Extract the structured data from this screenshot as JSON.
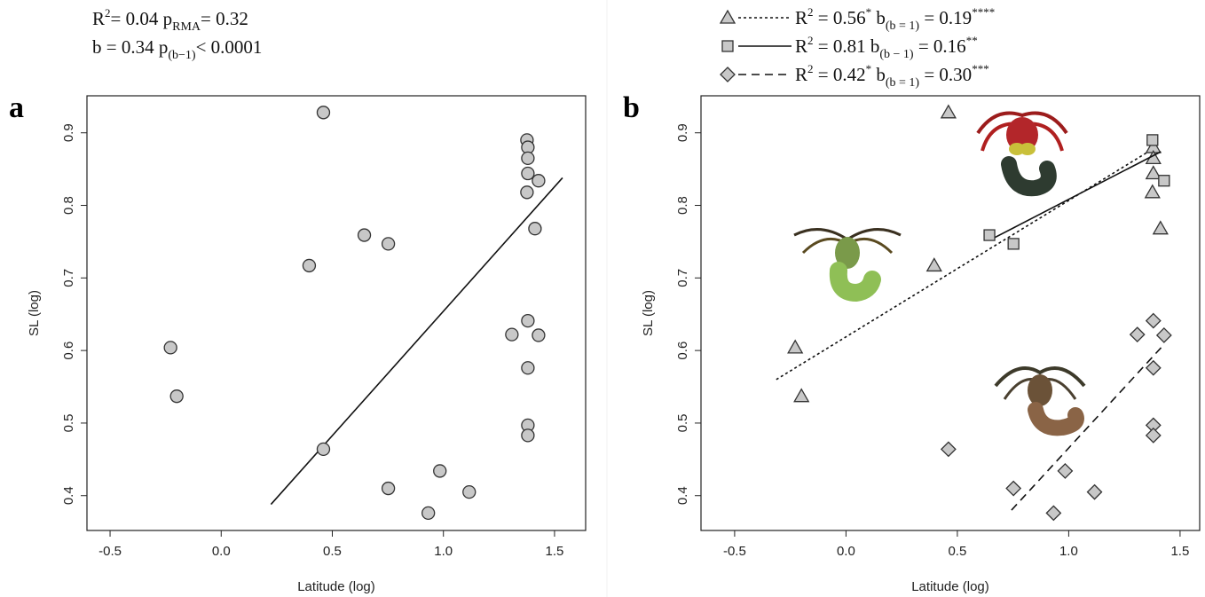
{
  "chart_data": [
    {
      "type": "scatter",
      "panel_label": "a",
      "annotations": [
        [
          "R",
          {
            "sup": "2"
          },
          "= 0.04  p",
          {
            "sub": "RMA"
          },
          "= 0.32"
        ],
        [
          " b = 0.34  p",
          {
            "sub": "(b−1)"
          },
          "< 0.0001"
        ]
      ],
      "x_label": "Latitude (log)",
      "y_label": "SL (log)",
      "xlim": [
        -0.604,
        1.64
      ],
      "ylim": [
        0.352,
        0.951
      ],
      "xticks": [
        -0.5,
        {
          "value": 0,
          "label": "0.0"
        },
        0.5,
        {
          "value": 1,
          "label": "1.0"
        },
        1.5
      ],
      "yticks": [
        0.4,
        0.5,
        0.6,
        0.7,
        0.8,
        0.9
      ],
      "series": [
        {
          "marker": "circle",
          "color": "#c8c8c8",
          "line_style": "solid",
          "x": [
            -0.228,
            -0.2,
            0.46,
            0.396,
            0.644,
            0.752,
            0.46,
            0.752,
            0.984,
            0.932,
            1.116,
            1.376,
            1.38,
            1.38,
            1.38,
            1.376,
            1.428,
            1.412,
            1.308,
            1.38,
            1.428,
            1.38,
            1.38,
            1.38
          ],
          "values": [
            0.604,
            0.537,
            0.928,
            0.717,
            0.759,
            0.747,
            0.464,
            0.41,
            0.434,
            0.376,
            0.405,
            0.89,
            0.88,
            0.865,
            0.844,
            0.818,
            0.834,
            0.768,
            0.622,
            0.641,
            0.621,
            0.576,
            0.497,
            0.483
          ],
          "fit_x": [
            0.224,
            1.536
          ],
          "fit_y": [
            0.388,
            0.838
          ]
        }
      ]
    },
    {
      "type": "scatter",
      "panel_label": "b",
      "x_label": "Latitude (log)",
      "y_label": "SL (log)",
      "xlim": [
        -0.651,
        1.588
      ],
      "ylim": [
        0.352,
        0.951
      ],
      "xticks": [
        -0.5,
        {
          "value": 0,
          "label": "0.0"
        },
        0.5,
        {
          "value": 1,
          "label": "1.0"
        },
        1.5
      ],
      "yticks": [
        0.4,
        0.5,
        0.6,
        0.7,
        0.8,
        0.9
      ],
      "series": [
        {
          "marker": "triangle",
          "color": "#c8c8c8",
          "line_style": "dotted",
          "legend": [
            "R",
            {
              "sup": "2"
            },
            " = 0.56",
            {
              "sup": "*"
            },
            "   b",
            {
              "sub": "(b = 1)"
            },
            " = 0.19",
            {
              "sup": "****"
            }
          ],
          "x": [
            -0.228,
            -0.2,
            0.46,
            0.396,
            1.38,
            1.38,
            1.38,
            1.376,
            1.412
          ],
          "values": [
            0.604,
            0.537,
            0.928,
            0.717,
            0.88,
            0.865,
            0.844,
            0.818,
            0.768
          ],
          "fit_x": [
            -0.313,
            1.379
          ],
          "fit_y": [
            0.56,
            0.878
          ]
        },
        {
          "marker": "square",
          "color": "#c8c8c8",
          "line_style": "solid",
          "legend": [
            "R",
            {
              "sup": "2"
            },
            " = 0.81    b",
            {
              "sub": "(b − 1)"
            },
            " = 0.16",
            {
              "sup": "**"
            }
          ],
          "x": [
            0.644,
            0.752,
            1.376,
            1.428
          ],
          "values": [
            0.759,
            0.747,
            0.89,
            0.834
          ],
          "fit_x": [
            0.651,
            1.414
          ],
          "fit_y": [
            0.753,
            0.874
          ]
        },
        {
          "marker": "diamond",
          "color": "#c8c8c8",
          "line_style": "dashed",
          "legend": [
            "R",
            {
              "sup": "2"
            },
            " = 0.42",
            {
              "sup": "*"
            },
            "   b",
            {
              "sub": "(b = 1)"
            },
            " = 0.30",
            {
              "sup": "***"
            }
          ],
          "x": [
            0.46,
            0.752,
            0.984,
            0.932,
            1.116,
            1.308,
            1.38,
            1.428,
            1.38,
            1.38,
            1.38
          ],
          "values": [
            0.464,
            0.41,
            0.434,
            0.376,
            0.405,
            0.622,
            0.641,
            0.621,
            0.576,
            0.497,
            0.483
          ],
          "fit_x": [
            0.743,
            1.418
          ],
          "fit_y": [
            0.38,
            0.605
          ]
        }
      ]
    }
  ]
}
